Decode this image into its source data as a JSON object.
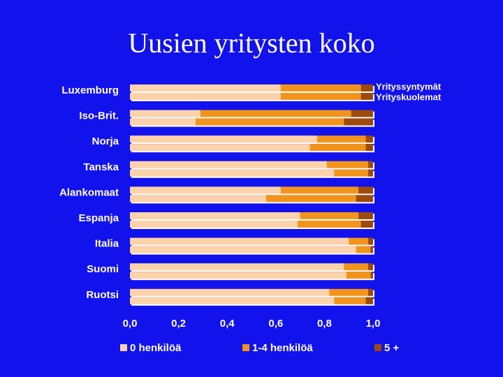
{
  "chart_data": {
    "type": "stacked-barh",
    "title": "Uusien yritysten koko",
    "categories": [
      "Luxemburg",
      "Iso-Brit.",
      "Norja",
      "Tanska",
      "Alankomaat",
      "Espanja",
      "Italia",
      "Suomi",
      "Ruotsi"
    ],
    "bar_labels": [
      "Yrityssyntymät",
      "Yrityskuolemat"
    ],
    "series": [
      {
        "name": "0 henkilöä",
        "color": "#fcd2aa",
        "values": [
          [
            0.62,
            0.62
          ],
          [
            0.29,
            0.27
          ],
          [
            0.77,
            0.74
          ],
          [
            0.81,
            0.84
          ],
          [
            0.62,
            0.56
          ],
          [
            0.7,
            0.69
          ],
          [
            0.9,
            0.93
          ],
          [
            0.88,
            0.89
          ],
          [
            0.82,
            0.84
          ]
        ]
      },
      {
        "name": "1-4 henkilöä",
        "color": "#f3941a",
        "values": [
          [
            0.33,
            0.33
          ],
          [
            0.62,
            0.61
          ],
          [
            0.2,
            0.23
          ],
          [
            0.17,
            0.14
          ],
          [
            0.32,
            0.37
          ],
          [
            0.24,
            0.26
          ],
          [
            0.08,
            0.06
          ],
          [
            0.1,
            0.1
          ],
          [
            0.16,
            0.13
          ]
        ]
      },
      {
        "name": "5 +",
        "color": "#9e4a0c",
        "values": [
          [
            0.05,
            0.05
          ],
          [
            0.09,
            0.12
          ],
          [
            0.03,
            0.03
          ],
          [
            0.02,
            0.02
          ],
          [
            0.06,
            0.07
          ],
          [
            0.06,
            0.05
          ],
          [
            0.02,
            0.01
          ],
          [
            0.02,
            0.01
          ],
          [
            0.02,
            0.03
          ]
        ]
      }
    ],
    "xlim": [
      0,
      1
    ],
    "xticks": [
      {
        "value": 0,
        "label": "0,0"
      },
      {
        "value": 0.2,
        "label": "0,2"
      },
      {
        "value": 0.4,
        "label": "0,4"
      },
      {
        "value": 0.6,
        "label": "0,6"
      },
      {
        "value": 0.8,
        "label": "0,8"
      },
      {
        "value": 1,
        "label": "1,0"
      }
    ]
  }
}
